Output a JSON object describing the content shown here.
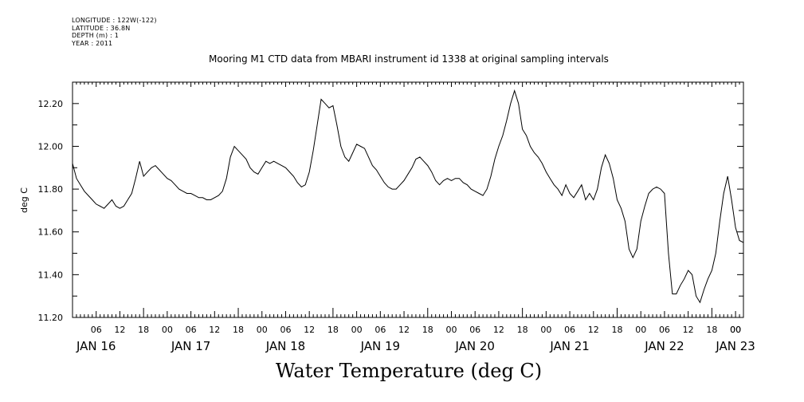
{
  "metadata_lines": [
    "LONGITUDE : 122W(-122)",
    "LATITUDE : 36.8N",
    "DEPTH (m) : 1",
    "YEAR : 2011"
  ],
  "chart_data": {
    "type": "line",
    "title": "Mooring M1 CTD data from MBARI instrument id 1338 at original sampling intervals",
    "xlabel": "Water Temperature (deg C)",
    "ylabel": "deg C",
    "ylim": [
      11.2,
      12.3
    ],
    "y_ticks": [
      "11.20",
      "11.40",
      "11.60",
      "11.80",
      "12.00",
      "12.20"
    ],
    "x_range_hours": [
      0,
      170
    ],
    "x_hour_ticks": [
      "06",
      "12",
      "18",
      "00",
      "06",
      "12",
      "18",
      "00",
      "06",
      "12",
      "18",
      "00",
      "06",
      "12",
      "18",
      "00",
      "06",
      "12",
      "18",
      "00",
      "06",
      "12",
      "18",
      "00",
      "06",
      "12",
      "18",
      "00",
      "00"
    ],
    "x_day_labels": [
      "JAN 16",
      "JAN 17",
      "JAN 18",
      "JAN 19",
      "JAN 20",
      "JAN 21",
      "JAN 22",
      "JAN 23"
    ],
    "series": [
      {
        "values": [
          [
            0,
            11.92
          ],
          [
            1,
            11.85
          ],
          [
            2,
            11.82
          ],
          [
            3,
            11.79
          ],
          [
            4,
            11.77
          ],
          [
            5,
            11.75
          ],
          [
            6,
            11.73
          ],
          [
            7,
            11.72
          ],
          [
            8,
            11.71
          ],
          [
            9,
            11.73
          ],
          [
            10,
            11.75
          ],
          [
            11,
            11.72
          ],
          [
            12,
            11.71
          ],
          [
            13,
            11.72
          ],
          [
            14,
            11.75
          ],
          [
            15,
            11.78
          ],
          [
            16,
            11.85
          ],
          [
            17,
            11.93
          ],
          [
            18,
            11.86
          ],
          [
            19,
            11.88
          ],
          [
            20,
            11.9
          ],
          [
            21,
            11.91
          ],
          [
            22,
            11.89
          ],
          [
            23,
            11.87
          ],
          [
            24,
            11.85
          ],
          [
            25,
            11.84
          ],
          [
            26,
            11.82
          ],
          [
            27,
            11.8
          ],
          [
            28,
            11.79
          ],
          [
            29,
            11.78
          ],
          [
            30,
            11.78
          ],
          [
            31,
            11.77
          ],
          [
            32,
            11.76
          ],
          [
            33,
            11.76
          ],
          [
            34,
            11.75
          ],
          [
            35,
            11.75
          ],
          [
            36,
            11.76
          ],
          [
            37,
            11.77
          ],
          [
            38,
            11.79
          ],
          [
            39,
            11.85
          ],
          [
            40,
            11.95
          ],
          [
            41,
            12.0
          ],
          [
            42,
            11.98
          ],
          [
            43,
            11.96
          ],
          [
            44,
            11.94
          ],
          [
            45,
            11.9
          ],
          [
            46,
            11.88
          ],
          [
            47,
            11.87
          ],
          [
            48,
            11.9
          ],
          [
            49,
            11.93
          ],
          [
            50,
            11.92
          ],
          [
            51,
            11.93
          ],
          [
            52,
            11.92
          ],
          [
            53,
            11.91
          ],
          [
            54,
            11.9
          ],
          [
            55,
            11.88
          ],
          [
            56,
            11.86
          ],
          [
            57,
            11.83
          ],
          [
            58,
            11.81
          ],
          [
            59,
            11.82
          ],
          [
            60,
            11.88
          ],
          [
            61,
            11.98
          ],
          [
            62,
            12.1
          ],
          [
            63,
            12.22
          ],
          [
            64,
            12.2
          ],
          [
            65,
            12.18
          ],
          [
            66,
            12.19
          ],
          [
            67,
            12.1
          ],
          [
            68,
            12.0
          ],
          [
            69,
            11.95
          ],
          [
            70,
            11.93
          ],
          [
            71,
            11.97
          ],
          [
            72,
            12.01
          ],
          [
            73,
            12.0
          ],
          [
            74,
            11.99
          ],
          [
            75,
            11.95
          ],
          [
            76,
            11.91
          ],
          [
            77,
            11.89
          ],
          [
            78,
            11.86
          ],
          [
            79,
            11.83
          ],
          [
            80,
            11.81
          ],
          [
            81,
            11.8
          ],
          [
            82,
            11.8
          ],
          [
            83,
            11.82
          ],
          [
            84,
            11.84
          ],
          [
            85,
            11.87
          ],
          [
            86,
            11.9
          ],
          [
            87,
            11.94
          ],
          [
            88,
            11.95
          ],
          [
            89,
            11.93
          ],
          [
            90,
            11.91
          ],
          [
            91,
            11.88
          ],
          [
            92,
            11.84
          ],
          [
            93,
            11.82
          ],
          [
            94,
            11.84
          ],
          [
            95,
            11.85
          ],
          [
            96,
            11.84
          ],
          [
            97,
            11.85
          ],
          [
            98,
            11.85
          ],
          [
            99,
            11.83
          ],
          [
            100,
            11.82
          ],
          [
            101,
            11.8
          ],
          [
            102,
            11.79
          ],
          [
            103,
            11.78
          ],
          [
            104,
            11.77
          ],
          [
            105,
            11.8
          ],
          [
            106,
            11.86
          ],
          [
            107,
            11.94
          ],
          [
            108,
            12.0
          ],
          [
            109,
            12.05
          ],
          [
            110,
            12.12
          ],
          [
            111,
            12.2
          ],
          [
            112,
            12.26
          ],
          [
            113,
            12.2
          ],
          [
            114,
            12.08
          ],
          [
            115,
            12.05
          ],
          [
            116,
            12.0
          ],
          [
            117,
            11.97
          ],
          [
            118,
            11.95
          ],
          [
            119,
            11.92
          ],
          [
            120,
            11.88
          ],
          [
            121,
            11.85
          ],
          [
            122,
            11.82
          ],
          [
            123,
            11.8
          ],
          [
            124,
            11.77
          ],
          [
            125,
            11.82
          ],
          [
            126,
            11.78
          ],
          [
            127,
            11.76
          ],
          [
            128,
            11.79
          ],
          [
            129,
            11.82
          ],
          [
            130,
            11.75
          ],
          [
            131,
            11.78
          ],
          [
            132,
            11.75
          ],
          [
            133,
            11.8
          ],
          [
            134,
            11.9
          ],
          [
            135,
            11.96
          ],
          [
            136,
            11.92
          ],
          [
            137,
            11.85
          ],
          [
            138,
            11.75
          ],
          [
            139,
            11.71
          ],
          [
            140,
            11.65
          ],
          [
            141,
            11.52
          ],
          [
            142,
            11.48
          ],
          [
            143,
            11.52
          ],
          [
            144,
            11.65
          ],
          [
            145,
            11.72
          ],
          [
            146,
            11.78
          ],
          [
            147,
            11.8
          ],
          [
            148,
            11.81
          ],
          [
            149,
            11.8
          ],
          [
            150,
            11.78
          ],
          [
            151,
            11.5
          ],
          [
            152,
            11.31
          ],
          [
            153,
            11.31
          ],
          [
            154,
            11.35
          ],
          [
            155,
            11.38
          ],
          [
            156,
            11.42
          ],
          [
            157,
            11.4
          ],
          [
            158,
            11.3
          ],
          [
            159,
            11.27
          ],
          [
            160,
            11.33
          ],
          [
            161,
            11.38
          ],
          [
            162,
            11.42
          ],
          [
            163,
            11.5
          ],
          [
            164,
            11.65
          ],
          [
            165,
            11.78
          ],
          [
            166,
            11.86
          ],
          [
            167,
            11.75
          ],
          [
            168,
            11.62
          ],
          [
            169,
            11.56
          ],
          [
            170,
            11.55
          ]
        ]
      }
    ]
  }
}
